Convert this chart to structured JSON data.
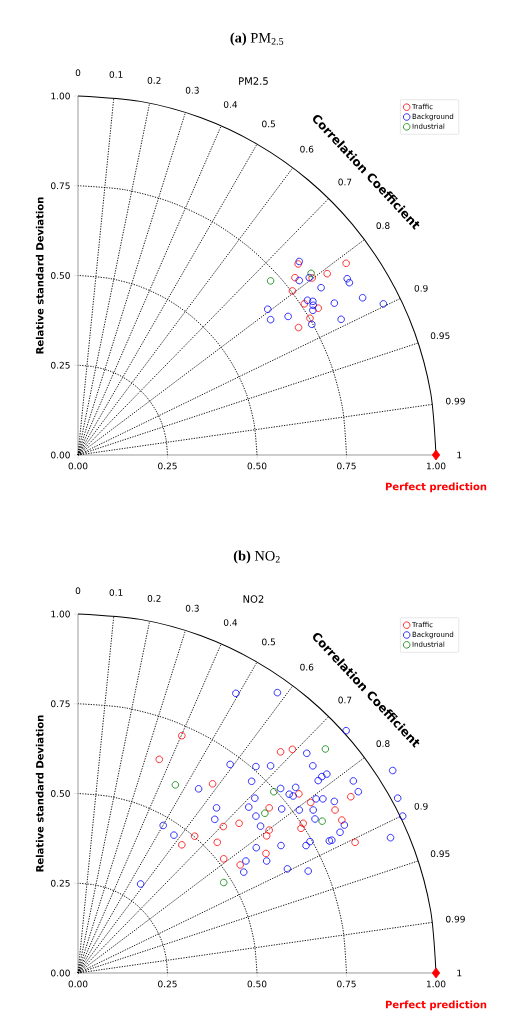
{
  "chart_data": [
    {
      "type": "scatter",
      "title": "**(a)** PM$_{2.5}$",
      "subtitle": "PM2.5",
      "ylabel": "Relative standard Deviation",
      "xlim": [
        0,
        1
      ],
      "ylim": [
        0,
        1
      ],
      "xticks": [
        {
          "value": 0,
          "label": "0.00"
        },
        {
          "value": 0.25,
          "label": "0.25"
        },
        {
          "value": 0.5,
          "label": "0.50"
        },
        {
          "value": 0.75,
          "label": "0.75"
        },
        {
          "value": 1,
          "label": "1.00"
        }
      ],
      "yticks": [
        {
          "value": 0,
          "label": "0.00"
        },
        {
          "value": 0.25,
          "label": "0.25"
        },
        {
          "value": 0.5,
          "label": "0.50"
        },
        {
          "value": 0.75,
          "label": "0.75"
        },
        {
          "value": 1,
          "label": "1.00"
        }
      ],
      "legend": "top right",
      "marker": "circle",
      "series": [
        {
          "type": "line",
          "color": "#000000",
          "marker": "none",
          "line_style": "solid",
          "x": [
            1,
            0.985,
            0.94,
            0.866,
            0.766,
            0.643,
            0.5,
            0.342,
            0.174,
            0
          ],
          "values": [
            0,
            0.174,
            0.342,
            0.5,
            0.643,
            0.766,
            0.866,
            0.94,
            0.985,
            1
          ]
        },
        {
          "type": "line",
          "color": "#000000",
          "marker": "none",
          "line_style": "dotted",
          "x": [
            0.75,
            0.739,
            0.705,
            0.65,
            0.575,
            0.482,
            0.375,
            0.257,
            0.13,
            0
          ],
          "values": [
            0,
            0.13,
            0.257,
            0.375,
            0.482,
            0.575,
            0.65,
            0.705,
            0.739,
            0.75
          ]
        },
        {
          "type": "line",
          "color": "#000000",
          "marker": "none",
          "line_style": "dotted",
          "x": [
            0.5,
            0.492,
            0.47,
            0.433,
            0.383,
            0.321,
            0.25,
            0.171,
            0.087,
            0
          ],
          "values": [
            0,
            0.087,
            0.171,
            0.25,
            0.321,
            0.383,
            0.433,
            0.47,
            0.492,
            0.5
          ]
        },
        {
          "type": "line",
          "color": "#000000",
          "marker": "none",
          "line_style": "dotted",
          "x": [
            0.25,
            0.246,
            0.235,
            0.217,
            0.192,
            0.161,
            0.125,
            0.086,
            0.043,
            0
          ],
          "values": [
            0,
            0.043,
            0.086,
            0.125,
            0.161,
            0.192,
            0.217,
            0.235,
            0.246,
            0.25
          ]
        },
        {
          "type": "line",
          "color": "#000000",
          "marker": "none",
          "line_style": "dotted",
          "x": [
            0,
            0.1
          ],
          "values": [
            0,
            0.995
          ]
        },
        {
          "type": "line",
          "color": "#000000",
          "marker": "none",
          "line_style": "dotted",
          "x": [
            0,
            0.2
          ],
          "values": [
            0,
            0.98
          ]
        },
        {
          "type": "line",
          "color": "#000000",
          "marker": "none",
          "line_style": "dotted",
          "x": [
            0,
            0.3
          ],
          "values": [
            0,
            0.954
          ]
        },
        {
          "type": "line",
          "color": "#000000",
          "marker": "none",
          "line_style": "dotted",
          "x": [
            0,
            0.4
          ],
          "values": [
            0,
            0.917
          ]
        },
        {
          "type": "line",
          "color": "#000000",
          "marker": "none",
          "line_style": "dotted",
          "x": [
            0,
            0.5
          ],
          "values": [
            0,
            0.866
          ]
        },
        {
          "type": "line",
          "color": "#000000",
          "marker": "none",
          "line_style": "dotted",
          "x": [
            0,
            0.6
          ],
          "values": [
            0,
            0.8
          ]
        },
        {
          "type": "line",
          "color": "#000000",
          "marker": "none",
          "line_style": "dotted",
          "x": [
            0,
            0.7
          ],
          "values": [
            0,
            0.714
          ]
        },
        {
          "type": "line",
          "color": "#000000",
          "marker": "none",
          "line_style": "dotted",
          "x": [
            0,
            0.8
          ],
          "values": [
            0,
            0.6
          ]
        },
        {
          "type": "line",
          "color": "#000000",
          "marker": "none",
          "line_style": "dotted",
          "x": [
            0,
            0.9
          ],
          "values": [
            0,
            0.436
          ]
        },
        {
          "type": "line",
          "color": "#000000",
          "marker": "none",
          "line_style": "dotted",
          "x": [
            0,
            0.95
          ],
          "values": [
            0,
            0.312
          ]
        },
        {
          "type": "line",
          "color": "#000000",
          "marker": "none",
          "line_style": "dotted",
          "x": [
            0,
            0.99
          ],
          "values": [
            0,
            0.141
          ]
        },
        {
          "name": "Traffic",
          "color": "#ff0000",
          "x": [
            0.615,
            0.749,
            0.606,
            0.696,
            0.599,
            0.632,
            0.671,
            0.648,
            0.616,
            0.654
          ],
          "values": [
            0.532,
            0.534,
            0.494,
            0.505,
            0.457,
            0.421,
            0.409,
            0.381,
            0.355,
            0.493
          ]
        },
        {
          "name": "Background",
          "color": "#0000ff",
          "x": [
            0.618,
            0.618,
            0.646,
            0.752,
            0.758,
            0.679,
            0.641,
            0.656,
            0.657,
            0.656,
            0.716,
            0.795,
            0.853,
            0.53,
            0.538,
            0.587,
            0.735,
            0.653
          ],
          "values": [
            0.539,
            0.486,
            0.494,
            0.491,
            0.48,
            0.466,
            0.431,
            0.428,
            0.417,
            0.403,
            0.423,
            0.438,
            0.421,
            0.406,
            0.377,
            0.386,
            0.378,
            0.364
          ]
        },
        {
          "name": "Industrial",
          "color": "#008000",
          "x": [
            0.538,
            0.651
          ],
          "values": [
            0.485,
            0.506
          ]
        },
        {
          "color": "#ff0000",
          "marker": "diamond",
          "x": [
            1
          ],
          "values": [
            0
          ]
        }
      ],
      "annotations": [
        "Correlation Coefficient",
        "Perfect prediction",
        {
          "text": "0",
          "x": 0,
          "y": 1
        },
        {
          "text": "0.1",
          "x": 0.1,
          "y": 0.995
        },
        {
          "text": "0.2",
          "x": 0.2,
          "y": 0.98
        },
        {
          "text": "0.3",
          "x": 0.3,
          "y": 0.954
        },
        {
          "text": "0.4",
          "x": 0.4,
          "y": 0.917
        },
        {
          "text": "0.5",
          "x": 0.5,
          "y": 0.866
        },
        {
          "text": "0.6",
          "x": 0.6,
          "y": 0.8
        },
        {
          "text": "0.7",
          "x": 0.7,
          "y": 0.714
        },
        {
          "text": "0.8",
          "x": 0.8,
          "y": 0.6
        },
        {
          "text": "0.9",
          "x": 0.9,
          "y": 0.436
        },
        {
          "text": "0.95",
          "x": 0.95,
          "y": 0.312
        },
        {
          "text": "0.99",
          "x": 0.99,
          "y": 0.141
        },
        {
          "text": "1",
          "x": 1,
          "y": 0
        }
      ]
    },
    {
      "type": "scatter",
      "title": "**(b)** NO$_{2}$",
      "subtitle": "NO2",
      "ylabel": "Relative standard Deviation",
      "xlim": [
        0,
        1
      ],
      "ylim": [
        0,
        1
      ],
      "xticks": [
        {
          "value": 0,
          "label": "0.00"
        },
        {
          "value": 0.25,
          "label": "0.25"
        },
        {
          "value": 0.5,
          "label": "0.50"
        },
        {
          "value": 0.75,
          "label": "0.75"
        },
        {
          "value": 1,
          "label": "1.00"
        }
      ],
      "yticks": [
        {
          "value": 0,
          "label": "0.00"
        },
        {
          "value": 0.25,
          "label": "0.25"
        },
        {
          "value": 0.5,
          "label": "0.50"
        },
        {
          "value": 0.75,
          "label": "0.75"
        },
        {
          "value": 1,
          "label": "1.00"
        }
      ],
      "legend": "top right",
      "marker": "circle",
      "series": [
        {
          "type": "line",
          "color": "#000000",
          "marker": "none",
          "line_style": "solid",
          "x": [
            1,
            0.985,
            0.94,
            0.866,
            0.766,
            0.643,
            0.5,
            0.342,
            0.174,
            0
          ],
          "values": [
            0,
            0.174,
            0.342,
            0.5,
            0.643,
            0.766,
            0.866,
            0.94,
            0.985,
            1
          ]
        },
        {
          "type": "line",
          "color": "#000000",
          "marker": "none",
          "line_style": "dotted",
          "x": [
            0.75,
            0.739,
            0.705,
            0.65,
            0.575,
            0.482,
            0.375,
            0.257,
            0.13,
            0
          ],
          "values": [
            0,
            0.13,
            0.257,
            0.375,
            0.482,
            0.575,
            0.65,
            0.705,
            0.739,
            0.75
          ]
        },
        {
          "type": "line",
          "color": "#000000",
          "marker": "none",
          "line_style": "dotted",
          "x": [
            0.5,
            0.492,
            0.47,
            0.433,
            0.383,
            0.321,
            0.25,
            0.171,
            0.087,
            0
          ],
          "values": [
            0,
            0.087,
            0.171,
            0.25,
            0.321,
            0.383,
            0.433,
            0.47,
            0.492,
            0.5
          ]
        },
        {
          "type": "line",
          "color": "#000000",
          "marker": "none",
          "line_style": "dotted",
          "x": [
            0.25,
            0.246,
            0.235,
            0.217,
            0.192,
            0.161,
            0.125,
            0.086,
            0.043,
            0
          ],
          "values": [
            0,
            0.043,
            0.086,
            0.125,
            0.161,
            0.192,
            0.217,
            0.235,
            0.246,
            0.25
          ]
        },
        {
          "type": "line",
          "color": "#000000",
          "marker": "none",
          "line_style": "dotted",
          "x": [
            0,
            0.1
          ],
          "values": [
            0,
            0.995
          ]
        },
        {
          "type": "line",
          "color": "#000000",
          "marker": "none",
          "line_style": "dotted",
          "x": [
            0,
            0.2
          ],
          "values": [
            0,
            0.98
          ]
        },
        {
          "type": "line",
          "color": "#000000",
          "marker": "none",
          "line_style": "dotted",
          "x": [
            0,
            0.3
          ],
          "values": [
            0,
            0.954
          ]
        },
        {
          "type": "line",
          "color": "#000000",
          "marker": "none",
          "line_style": "dotted",
          "x": [
            0,
            0.4
          ],
          "values": [
            0,
            0.917
          ]
        },
        {
          "type": "line",
          "color": "#000000",
          "marker": "none",
          "line_style": "dotted",
          "x": [
            0,
            0.5
          ],
          "values": [
            0,
            0.866
          ]
        },
        {
          "type": "line",
          "color": "#000000",
          "marker": "none",
          "line_style": "dotted",
          "x": [
            0,
            0.6
          ],
          "values": [
            0,
            0.8
          ]
        },
        {
          "type": "line",
          "color": "#000000",
          "marker": "none",
          "line_style": "dotted",
          "x": [
            0,
            0.7
          ],
          "values": [
            0,
            0.714
          ]
        },
        {
          "type": "line",
          "color": "#000000",
          "marker": "none",
          "line_style": "dotted",
          "x": [
            0,
            0.8
          ],
          "values": [
            0,
            0.6
          ]
        },
        {
          "type": "line",
          "color": "#000000",
          "marker": "none",
          "line_style": "dotted",
          "x": [
            0,
            0.9
          ],
          "values": [
            0,
            0.436
          ]
        },
        {
          "type": "line",
          "color": "#000000",
          "marker": "none",
          "line_style": "dotted",
          "x": [
            0,
            0.95
          ],
          "values": [
            0,
            0.312
          ]
        },
        {
          "type": "line",
          "color": "#000000",
          "marker": "none",
          "line_style": "dotted",
          "x": [
            0,
            0.99
          ],
          "values": [
            0,
            0.141
          ]
        },
        {
          "name": "Traffic",
          "color": "#ff0000",
          "x": [
            0.29,
            0.227,
            0.376,
            0.406,
            0.45,
            0.326,
            0.29,
            0.389,
            0.407,
            0.453,
            0.566,
            0.599,
            0.617,
            0.762,
            0.65,
            0.534,
            0.718,
            0.737,
            0.629,
            0.623,
            0.534,
            0.527,
            0.774,
            0.525
          ],
          "values": [
            0.661,
            0.595,
            0.527,
            0.408,
            0.417,
            0.381,
            0.357,
            0.364,
            0.318,
            0.301,
            0.616,
            0.623,
            0.499,
            0.491,
            0.475,
            0.46,
            0.454,
            0.426,
            0.417,
            0.403,
            0.398,
            0.382,
            0.364,
            0.333
          ]
        },
        {
          "name": "Background",
          "color": "#0000ff",
          "x": [
            0.441,
            0.425,
            0.497,
            0.337,
            0.485,
            0.494,
            0.387,
            0.477,
            0.382,
            0.497,
            0.51,
            0.238,
            0.268,
            0.498,
            0.469,
            0.463,
            0.175,
            0.557,
            0.749,
            0.639,
            0.538,
            0.656,
            0.879,
            0.681,
            0.695,
            0.671,
            0.769,
            0.783,
            0.566,
            0.608,
            0.59,
            0.601,
            0.665,
            0.684,
            0.893,
            0.716,
            0.569,
            0.618,
            0.657,
            0.907,
            0.662,
            0.744,
            0.732,
            0.709,
            0.702,
            0.873,
            0.648,
            0.637,
            0.567,
            0.527,
            0.585,
            0.643
          ],
          "values": [
            0.779,
            0.581,
            0.575,
            0.513,
            0.534,
            0.487,
            0.46,
            0.462,
            0.428,
            0.437,
            0.409,
            0.411,
            0.384,
            0.349,
            0.312,
            0.281,
            0.248,
            0.781,
            0.675,
            0.612,
            0.577,
            0.577,
            0.564,
            0.547,
            0.554,
            0.536,
            0.535,
            0.505,
            0.514,
            0.517,
            0.498,
            0.493,
            0.485,
            0.485,
            0.487,
            0.478,
            0.457,
            0.454,
            0.454,
            0.437,
            0.429,
            0.412,
            0.392,
            0.37,
            0.368,
            0.377,
            0.366,
            0.355,
            0.355,
            0.312,
            0.29,
            0.284
          ]
        },
        {
          "name": "Industrial",
          "color": "#008000",
          "x": [
            0.272,
            0.407,
            0.691,
            0.547,
            0.522,
            0.682
          ],
          "values": [
            0.524,
            0.252,
            0.624,
            0.505,
            0.445,
            0.423
          ]
        },
        {
          "color": "#ff0000",
          "marker": "diamond",
          "x": [
            1
          ],
          "values": [
            0
          ]
        }
      ],
      "annotations": [
        "Correlation Coefficient",
        "Perfect prediction",
        {
          "text": "0",
          "x": 0,
          "y": 1
        },
        {
          "text": "0.1",
          "x": 0.1,
          "y": 0.995
        },
        {
          "text": "0.2",
          "x": 0.2,
          "y": 0.98
        },
        {
          "text": "0.3",
          "x": 0.3,
          "y": 0.954
        },
        {
          "text": "0.4",
          "x": 0.4,
          "y": 0.917
        },
        {
          "text": "0.5",
          "x": 0.5,
          "y": 0.866
        },
        {
          "text": "0.6",
          "x": 0.6,
          "y": 0.8
        },
        {
          "text": "0.7",
          "x": 0.7,
          "y": 0.714
        },
        {
          "text": "0.8",
          "x": 0.8,
          "y": 0.6
        },
        {
          "text": "0.9",
          "x": 0.9,
          "y": 0.436
        },
        {
          "text": "0.95",
          "x": 0.95,
          "y": 0.312
        },
        {
          "text": "0.99",
          "x": 0.99,
          "y": 0.141
        },
        {
          "text": "1",
          "x": 1,
          "y": 0
        }
      ]
    }
  ]
}
